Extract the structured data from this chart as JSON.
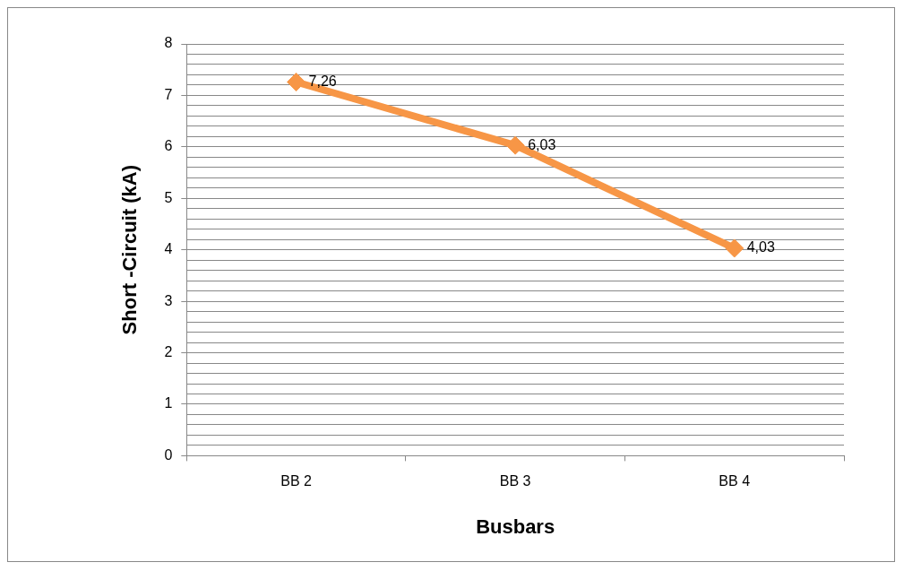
{
  "chart_data": {
    "type": "line",
    "xlabel": "Busbars",
    "ylabel": "Short -Circuit (kA)",
    "categories": [
      "BB 2",
      "BB 3",
      "BB 4"
    ],
    "series": [
      {
        "color": "#f79646",
        "values": [
          7.26,
          6.03,
          4.03
        ],
        "value_labels": [
          "7,26",
          "6,03",
          "4,03"
        ]
      }
    ],
    "ylim": [
      0,
      8
    ],
    "yticks": [
      0,
      {
        "value": 0.2,
        "label": null
      },
      {
        "value": 0.4,
        "label": null
      },
      {
        "value": 0.6,
        "label": null
      },
      {
        "value": 0.8,
        "label": null
      },
      1,
      {
        "value": 1.2,
        "label": null
      },
      {
        "value": 1.4,
        "label": null
      },
      {
        "value": 1.6,
        "label": null
      },
      {
        "value": 1.8,
        "label": null
      },
      2,
      {
        "value": 2.2,
        "label": null
      },
      {
        "value": 2.4,
        "label": null
      },
      {
        "value": 2.6,
        "label": null
      },
      {
        "value": 2.8,
        "label": null
      },
      3,
      {
        "value": 3.2,
        "label": null
      },
      {
        "value": 3.4,
        "label": null
      },
      {
        "value": 3.6,
        "label": null
      },
      {
        "value": 3.8,
        "label": null
      },
      4,
      {
        "value": 4.2,
        "label": null
      },
      {
        "value": 4.4,
        "label": null
      },
      {
        "value": 4.6,
        "label": null
      },
      {
        "value": 4.8,
        "label": null
      },
      5,
      {
        "value": 5.2,
        "label": null
      },
      {
        "value": 5.4,
        "label": null
      },
      {
        "value": 5.6,
        "label": null
      },
      {
        "value": 5.8,
        "label": null
      },
      6,
      {
        "value": 6.2,
        "label": null
      },
      {
        "value": 6.4,
        "label": null
      },
      {
        "value": 6.6,
        "label": null
      },
      {
        "value": 6.8,
        "label": null
      },
      7,
      {
        "value": 7.2,
        "label": null
      },
      {
        "value": 7.4,
        "label": null
      },
      {
        "value": 7.6,
        "label": null
      },
      {
        "value": 7.8,
        "label": null
      },
      8
    ],
    "grid": "y",
    "legend": false,
    "marker": "diamond",
    "line_style": "solid"
  }
}
